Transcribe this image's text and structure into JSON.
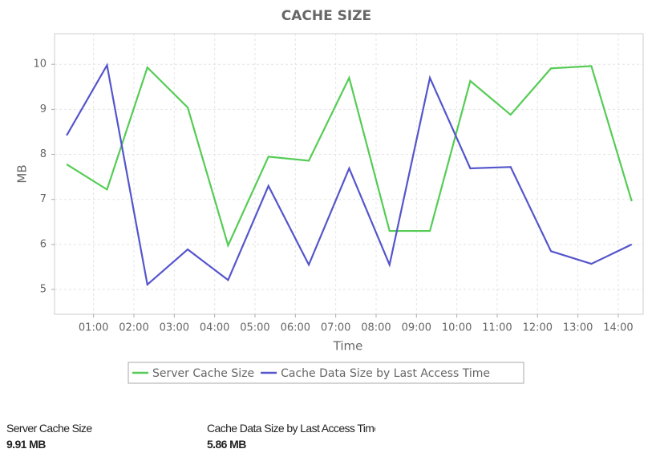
{
  "chart_data": {
    "type": "line",
    "title": "CACHE SIZE",
    "x_label": "Time",
    "y_label": "MB",
    "x": [
      "00:20",
      "01:20",
      "02:20",
      "03:20",
      "04:20",
      "05:20",
      "06:20",
      "07:20",
      "08:20",
      "09:20",
      "10:20",
      "11:20",
      "12:20",
      "13:20",
      "14:20"
    ],
    "series": [
      {
        "name": "Server Cache Size",
        "color": "#55cc55",
        "values": [
          7.78,
          7.22,
          9.93,
          9.04,
          5.98,
          7.95,
          7.86,
          9.7,
          6.3,
          6.3,
          9.63,
          8.88,
          9.91,
          9.96,
          6.96
        ]
      },
      {
        "name": "Cache Data Size by Last Access Time",
        "color": "#5555cc",
        "values": [
          8.42,
          9.98,
          5.11,
          5.89,
          5.21,
          7.3,
          5.55,
          7.69,
          5.55,
          9.7,
          7.69,
          7.72,
          5.85,
          5.57,
          6.0
        ]
      }
    ],
    "xlim": [
      "00:02",
      "14:37"
    ],
    "xticks": [
      "01:00",
      "02:00",
      "03:00",
      "04:00",
      "05:00",
      "06:00",
      "07:00",
      "08:00",
      "09:00",
      "10:00",
      "11:00",
      "12:00",
      "13:00",
      "14:00"
    ],
    "ylim": [
      4.45,
      10.68
    ],
    "yticks": [
      5,
      6,
      7,
      8,
      9,
      10
    ],
    "grid": true,
    "legend": "bottom"
  },
  "summary": [
    {
      "label": "Server Cache Size",
      "value": "9.91 MB"
    },
    {
      "label": "Cache Data Size by Last Access Time",
      "value": "5.86 MB"
    }
  ]
}
